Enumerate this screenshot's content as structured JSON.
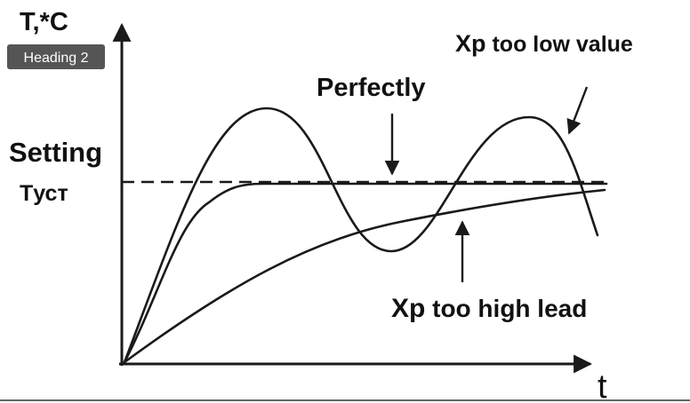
{
  "axis_labels": {
    "y": "T,*C",
    "x": "t"
  },
  "badge": "Heading 2",
  "labels": {
    "setting": "Setting",
    "setting_symbol": "Tуст",
    "perfectly": "Perfectly",
    "low": {
      "prefix": "Xp",
      "text": "too low value"
    },
    "high": {
      "prefix": "Xp",
      "text": "too high lead"
    }
  }
}
